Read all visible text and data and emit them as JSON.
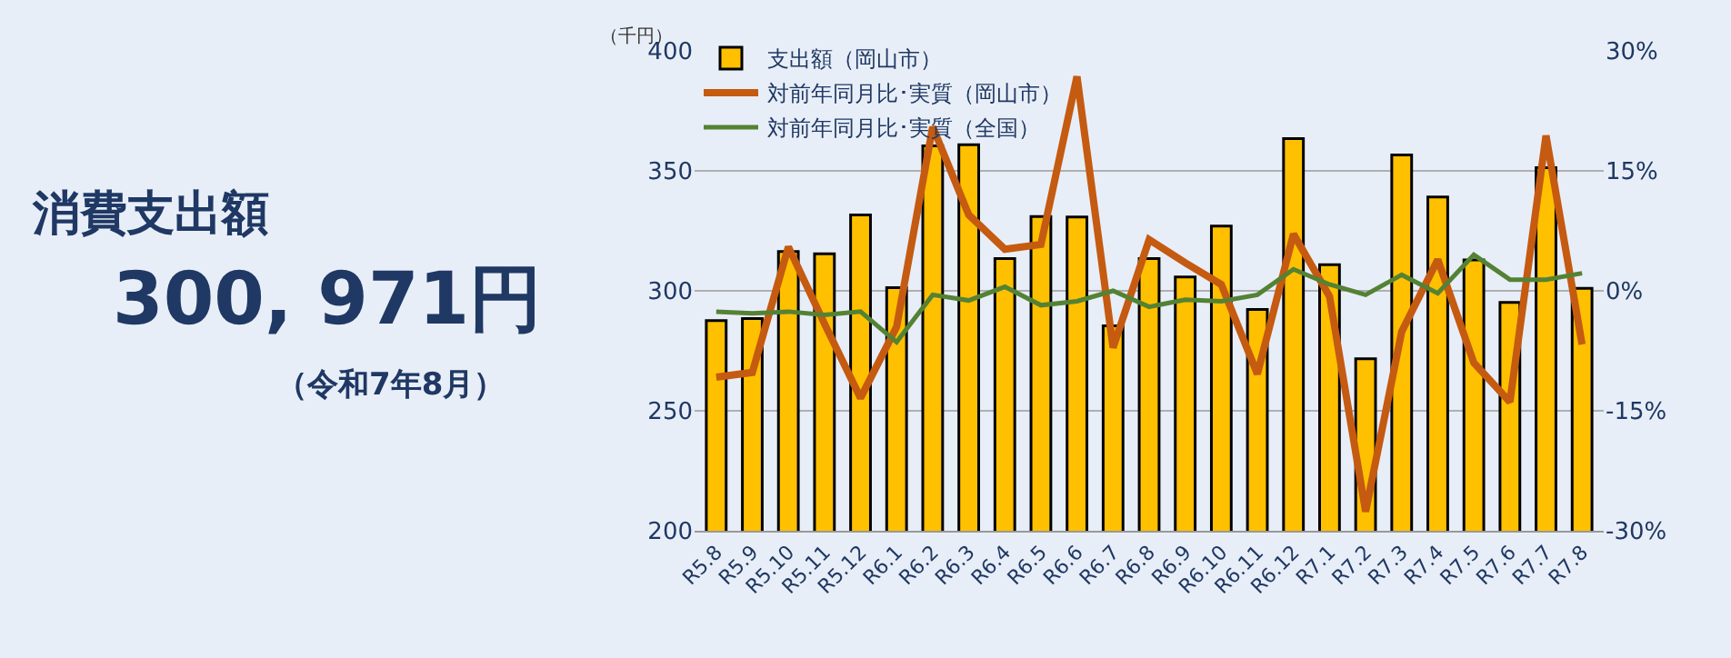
{
  "chart_data": {
    "type": "bar",
    "categories": [
      "R5.8",
      "R5.9",
      "R5.10",
      "R5.11",
      "R5.12",
      "R6.1",
      "R6.2",
      "R6.3",
      "R6.4",
      "R6.5",
      "R6.6",
      "R6.7",
      "R6.8",
      "R6.9",
      "R6.10",
      "R6.11",
      "R6.12",
      "R7.1",
      "R7.2",
      "R7.3",
      "R7.4",
      "R7.5",
      "R7.6",
      "R7.7",
      "R7.8"
    ],
    "series": [
      {
        "name": "支出額（岡山市）",
        "color": "#ffc000",
        "values": [
          287.6,
          288.4,
          316.4,
          315.4,
          331.6,
          301.3,
          360.4,
          360.9,
          313.4,
          331,
          330.8,
          285.4,
          313.4,
          305.8,
          327,
          292.2,
          363.4,
          310.9,
          271.7,
          356.6,
          339.1,
          312.9,
          295.2,
          351.3,
          301
        ]
      },
      {
        "name": "対前年同月比･実質（岡山市）",
        "type": "line",
        "axis": "y2",
        "color": "#c55a11",
        "values": [
          -10.8,
          -10.2,
          5.5,
          -4.1,
          -13.4,
          -4.5,
          20.5,
          9.5,
          5.2,
          5.8,
          26.8,
          -7.1,
          6.4,
          3.5,
          0.8,
          -10.4,
          7.1,
          -0.7,
          -27.6,
          -5.1,
          3.9,
          -9.0,
          -13.9,
          19.4,
          -6.7
        ]
      },
      {
        "name": "対前年同月比･実質（全国）",
        "type": "line",
        "axis": "y2",
        "color": "#548235",
        "values": [
          -2.6,
          -2.8,
          -2.6,
          -3.0,
          -2.6,
          -6.4,
          -0.5,
          -1.2,
          0.5,
          -1.8,
          -1.3,
          0,
          -2.0,
          -1.1,
          -1.3,
          -0.5,
          2.7,
          0.8,
          -0.5,
          2.0,
          -0.3,
          4.5,
          1.4,
          1.4,
          2.2
        ]
      }
    ],
    "ylabel": "（千円）",
    "ylim": [
      200,
      400
    ],
    "yticks": [
      200,
      250,
      300,
      350,
      400
    ],
    "y2lim": [
      -30,
      30
    ],
    "y2ticks": [
      {
        "value": -30,
        "label": "-30%"
      },
      {
        "value": -15,
        "label": "-15%"
      },
      {
        "value": 0,
        "label": "0%"
      },
      {
        "value": 15,
        "label": "15%"
      },
      {
        "value": 30,
        "label": "30%"
      }
    ],
    "grid": "y",
    "legend": "top left",
    "marker": "none",
    "line_style": "solid",
    "annotations": [
      "消費支出額",
      "300, 971円",
      "（令和7年8月）"
    ]
  }
}
